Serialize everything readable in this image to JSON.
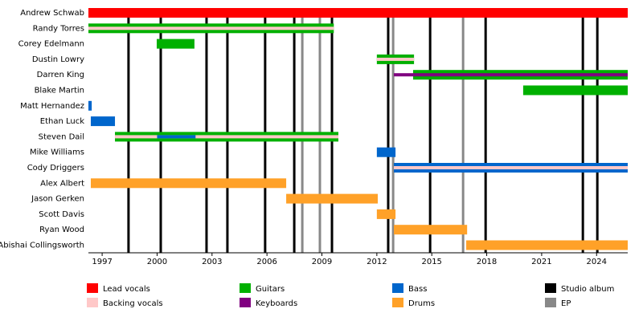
{
  "chart_data": {
    "type": "timeline",
    "xlim": [
      1996.25,
      2025.7
    ],
    "xticks": [
      1997,
      2000,
      2003,
      2006,
      2009,
      2012,
      2015,
      2018,
      2021,
      2024
    ],
    "roles": [
      {
        "name": "Lead vocals",
        "color": "#ff0000"
      },
      {
        "name": "Backing vocals",
        "color": "#ffc8c8"
      },
      {
        "name": "Guitars",
        "color": "#00b000"
      },
      {
        "name": "Keyboards",
        "color": "#800080"
      },
      {
        "name": "Bass",
        "color": "#0066cc"
      },
      {
        "name": "Drums",
        "color": "#ffa128"
      }
    ],
    "events": [
      {
        "name": "Studio album",
        "color": "#000000",
        "values": [
          1998.44,
          2000.2,
          2002.7,
          2003.84,
          2005.9,
          2007.49,
          2009.55,
          2012.62,
          2014.91,
          2017.94,
          2023.25,
          2024.04
        ]
      },
      {
        "name": "EP",
        "color": "#888888",
        "values": [
          2007.93,
          2008.89,
          2012.89,
          2016.71
        ]
      }
    ],
    "members": [
      {
        "name": "Andrew Schwab",
        "bars": [
          {
            "role": "Lead vocals",
            "start": 1996.25,
            "end": 2025.7
          }
        ]
      },
      {
        "name": "Randy Torres",
        "bars": [
          {
            "role": "Guitars",
            "start": 1996.25,
            "end": 2009.65
          },
          {
            "role": "Backing vocals",
            "start": 1996.25,
            "end": 2009.65
          }
        ]
      },
      {
        "name": "Corey Edelmann",
        "bars": [
          {
            "role": "Guitars",
            "start": 1999.98,
            "end": 2002.04
          }
        ]
      },
      {
        "name": "Dustin Lowry",
        "bars": [
          {
            "role": "Guitars",
            "start": 2012.0,
            "end": 2014.03
          },
          {
            "role": "Backing vocals",
            "start": 2012.0,
            "end": 2014.03
          }
        ]
      },
      {
        "name": "Darren King",
        "bars": [
          {
            "role": "Guitars",
            "start": 2013.98,
            "end": 2025.7
          },
          {
            "role": "Keyboards",
            "start": 2012.93,
            "end": 2025.7
          }
        ]
      },
      {
        "name": "Blake Martin",
        "bars": [
          {
            "role": "Guitars",
            "start": 2019.99,
            "end": 2025.7
          }
        ]
      },
      {
        "name": "Matt Hernandez",
        "bars": [
          {
            "role": "Bass",
            "start": 1996.25,
            "end": 1996.43
          }
        ]
      },
      {
        "name": "Ethan Luck",
        "bars": [
          {
            "role": "Bass",
            "start": 1996.38,
            "end": 1997.7
          }
        ]
      },
      {
        "name": "Steven Dail",
        "bars": [
          {
            "role": "Guitars",
            "start": 1997.7,
            "end": 2009.9
          },
          {
            "role": "Backing vocals",
            "start": 1997.7,
            "end": 2009.9
          },
          {
            "role": "Bass",
            "start": 2000.0,
            "end": 2002.1
          }
        ]
      },
      {
        "name": "Mike Williams",
        "bars": [
          {
            "role": "Bass",
            "start": 2012.0,
            "end": 2013.02
          }
        ]
      },
      {
        "name": "Cody Driggers",
        "bars": [
          {
            "role": "Bass",
            "start": 2012.93,
            "end": 2025.7
          },
          {
            "role": "Backing vocals",
            "start": 2012.93,
            "end": 2025.7
          }
        ]
      },
      {
        "name": "Alex Albert",
        "bars": [
          {
            "role": "Drums",
            "start": 1996.38,
            "end": 2007.05
          }
        ]
      },
      {
        "name": "Jason Gerken",
        "bars": [
          {
            "role": "Drums",
            "start": 2007.05,
            "end": 2012.05
          }
        ]
      },
      {
        "name": "Scott Davis",
        "bars": [
          {
            "role": "Drums",
            "start": 2012.0,
            "end": 2013.02
          }
        ]
      },
      {
        "name": "Ryan Wood",
        "bars": [
          {
            "role": "Drums",
            "start": 2012.93,
            "end": 2016.93
          }
        ]
      },
      {
        "name": "Abishai Collingsworth",
        "bars": [
          {
            "role": "Drums",
            "start": 2016.88,
            "end": 2025.7
          }
        ]
      }
    ]
  }
}
